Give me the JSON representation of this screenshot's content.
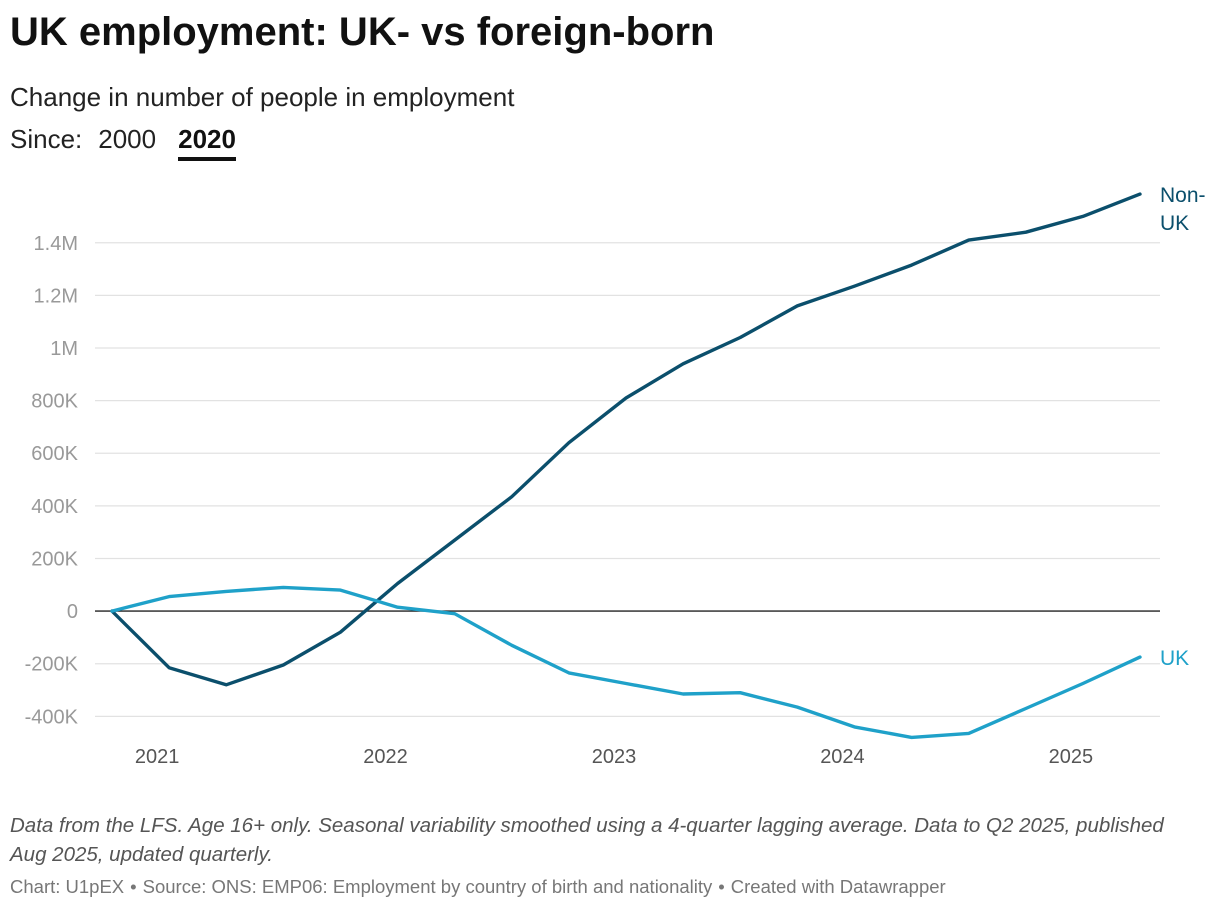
{
  "title": "UK employment: UK- vs foreign-born",
  "subtitle": "Change in number of people in employment",
  "since": {
    "label": "Since:",
    "options": [
      "2000",
      "2020"
    ],
    "selected": "2020"
  },
  "note": "Data from the LFS. Age 16+ only. Seasonal variability smoothed using a 4-quarter lagging average. Data to Q2 2025, published Aug 2025, updated quarterly.",
  "footer": {
    "chart_id": "Chart: U1pEX",
    "source": "Source: ONS: EMP06: Employment by country of birth and nationality",
    "created": "Created with Datawrapper",
    "separator": "•"
  },
  "colors": {
    "non_uk": "#0b4f6c",
    "uk": "#1fa1c9",
    "grid": "#e2e2e2",
    "zero_line": "#222222"
  },
  "chart_data": {
    "type": "line",
    "x": [
      "2020 Q4",
      "2021 Q1",
      "2021 Q2",
      "2021 Q3",
      "2021 Q4",
      "2022 Q1",
      "2022 Q2",
      "2022 Q3",
      "2022 Q4",
      "2023 Q1",
      "2023 Q2",
      "2023 Q3",
      "2023 Q4",
      "2024 Q1",
      "2024 Q2",
      "2024 Q3",
      "2024 Q4",
      "2025 Q1",
      "2025 Q2"
    ],
    "x_ticks": [
      "2021",
      "2022",
      "2023",
      "2024",
      "2025"
    ],
    "y_ticks": [
      1400000,
      1200000,
      1000000,
      800000,
      600000,
      400000,
      200000,
      0,
      -200000,
      -400000
    ],
    "y_tick_labels": [
      "1.4M",
      "1.2M",
      "1M",
      "800K",
      "600K",
      "400K",
      "200K",
      "0",
      "-200K",
      "-400K"
    ],
    "ylim": [
      -450000,
      1580000
    ],
    "grid": true,
    "legend": "direct-labels-right",
    "series": [
      {
        "name": "Non-UK",
        "label_lines": [
          "Non-",
          "UK"
        ],
        "values": [
          0,
          -215000,
          -280000,
          -205000,
          -80000,
          105000,
          270000,
          435000,
          640000,
          810000,
          940000,
          1040000,
          1160000,
          1235000,
          1315000,
          1410000,
          1440000,
          1500000,
          1585000
        ]
      },
      {
        "name": "UK",
        "label_lines": [
          "UK"
        ],
        "values": [
          0,
          55000,
          75000,
          90000,
          80000,
          15000,
          -10000,
          -130000,
          -235000,
          -275000,
          -315000,
          -310000,
          -365000,
          -440000,
          -480000,
          -465000,
          -370000,
          -275000,
          -175000
        ]
      }
    ]
  }
}
